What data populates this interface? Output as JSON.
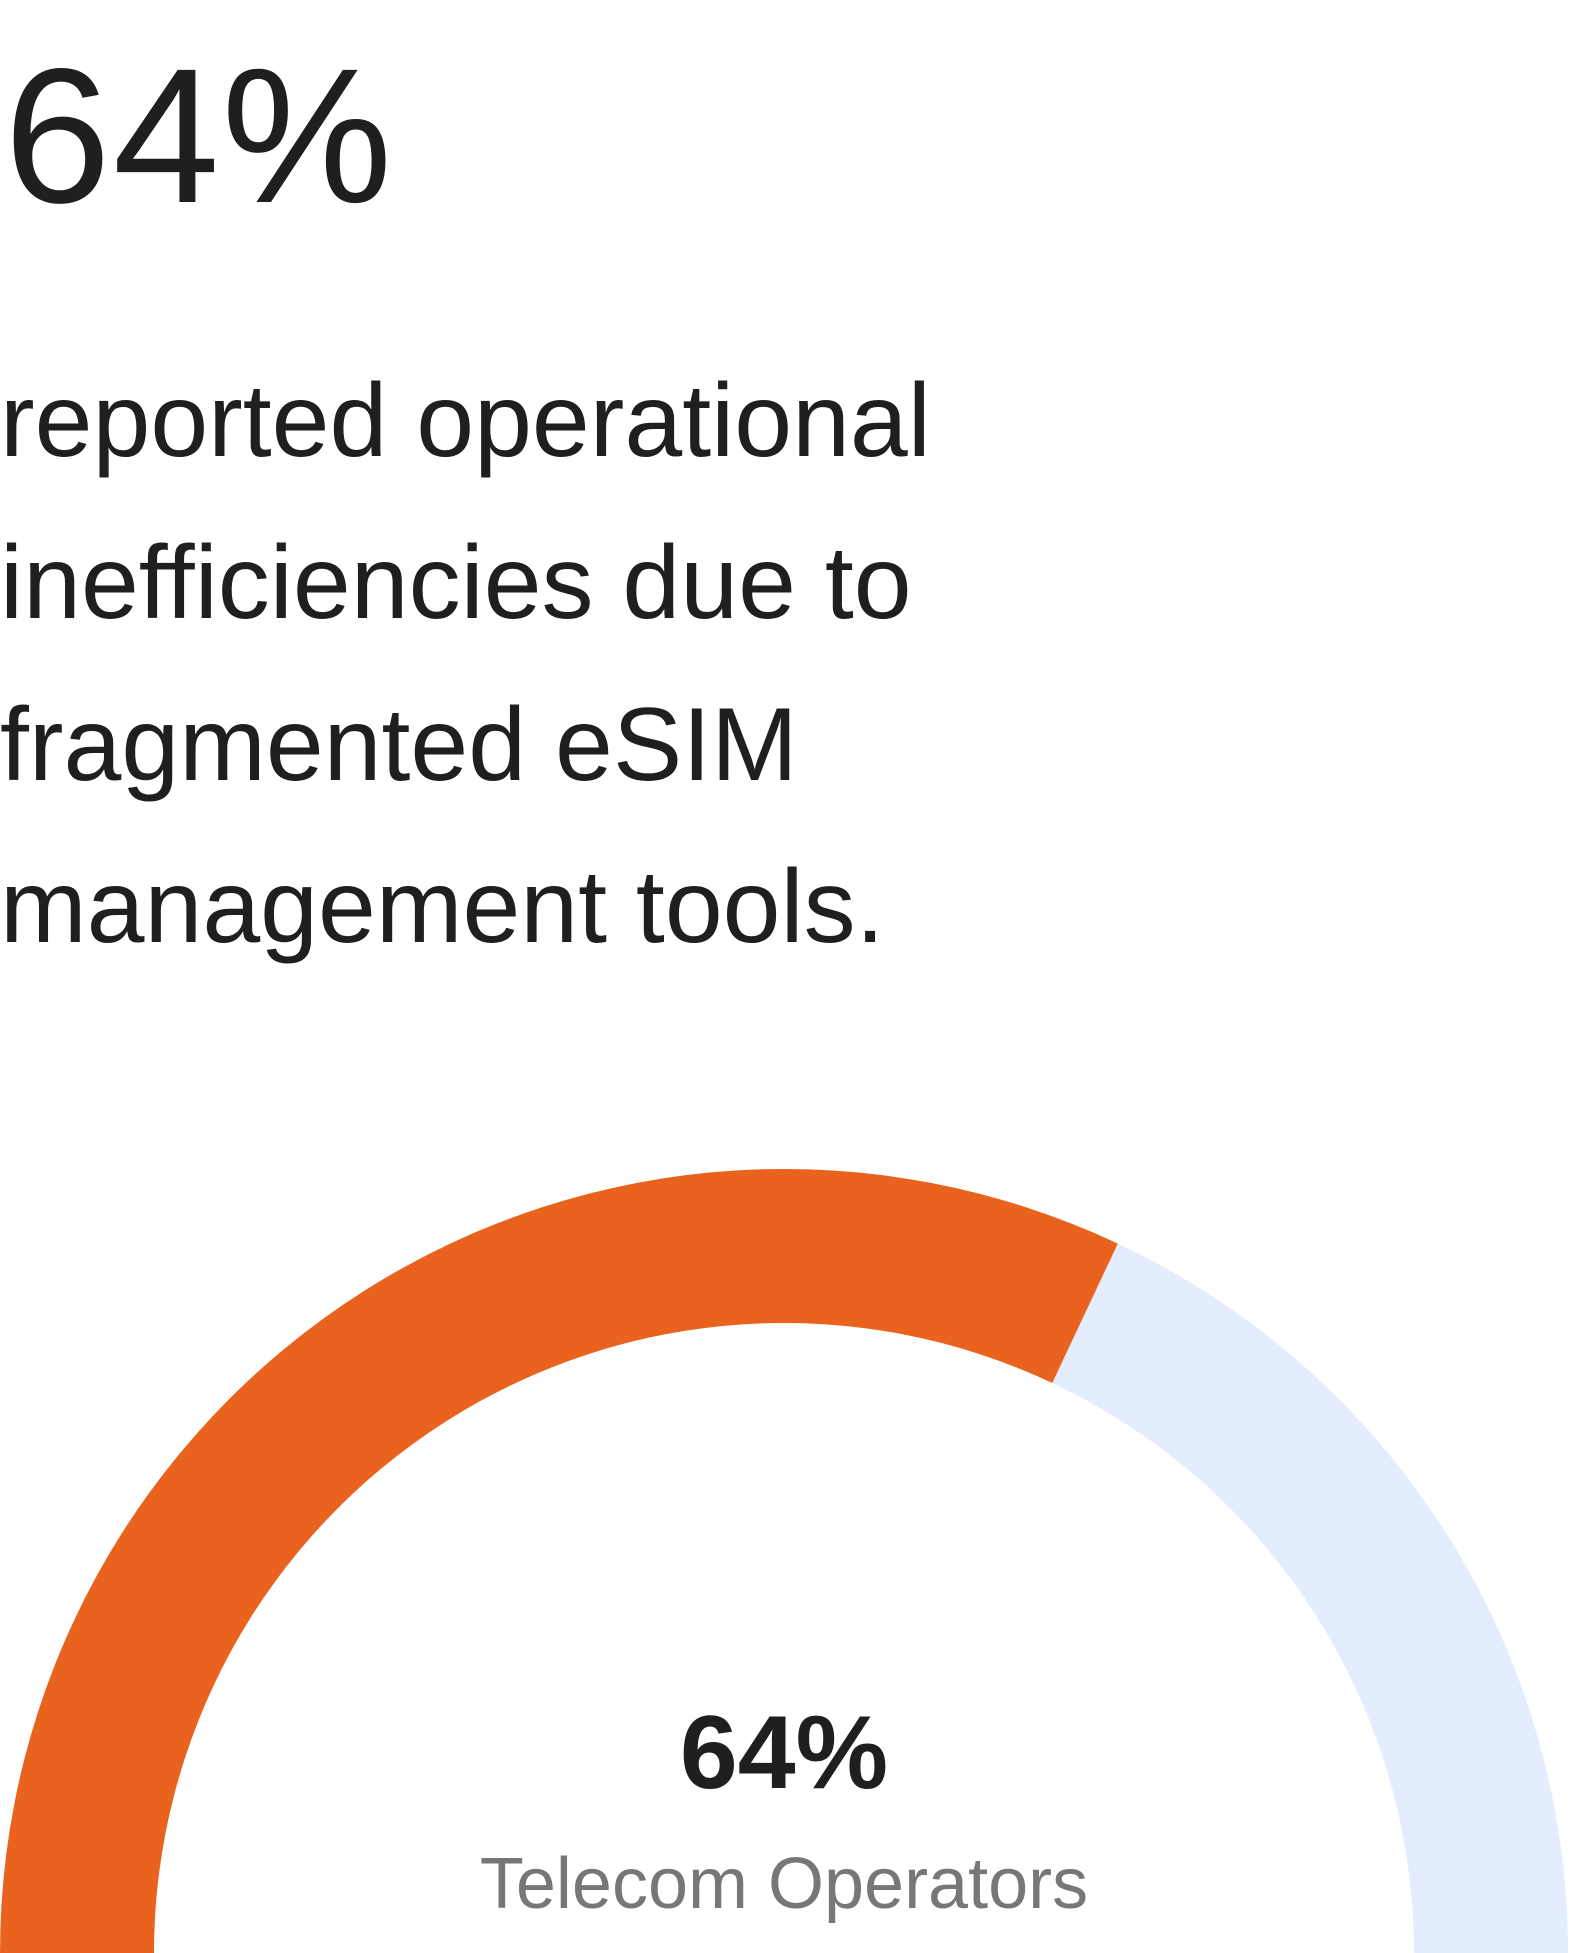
{
  "stat": {
    "value": "64%",
    "description": "reported operational inefficiencies due to fragmented eSIM management tools."
  },
  "chart_data": {
    "type": "gauge",
    "value": 64,
    "max": 100,
    "value_label": "64%",
    "label": "Telecom Operators",
    "colors": {
      "filled": "#E9631F",
      "remaining": "#E3EDFD"
    }
  }
}
